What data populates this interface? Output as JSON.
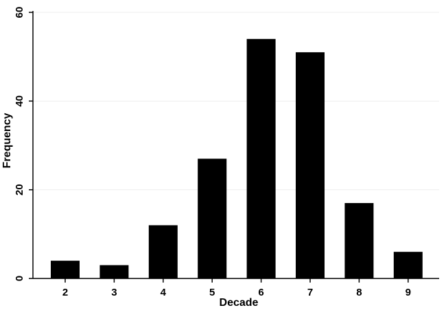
{
  "chart_data": {
    "type": "bar",
    "categories": [
      "2",
      "3",
      "4",
      "5",
      "6",
      "7",
      "8",
      "9"
    ],
    "values": [
      4,
      3,
      12,
      27,
      54,
      51,
      17,
      6
    ],
    "title": "",
    "xlabel": "Decade",
    "ylabel": "Frequency",
    "ylim": [
      0,
      60
    ],
    "yticks": [
      0,
      20,
      40,
      60
    ],
    "grid": true,
    "legend": "none",
    "colors": {
      "bar": "#000000",
      "grid": "#eeeeee",
      "axis": "#000000",
      "background": "#ffffff"
    }
  }
}
